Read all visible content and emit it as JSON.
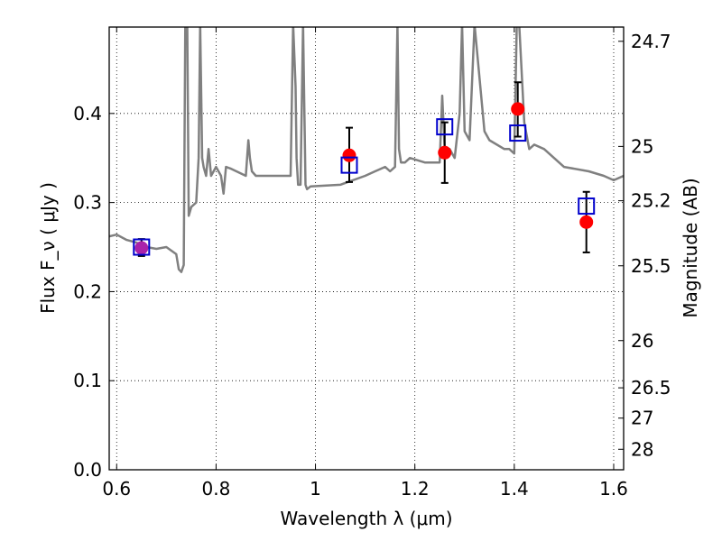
{
  "chart_data": {
    "type": "scatter",
    "xlabel": "Wavelength  λ (μm)",
    "ylabel_left": "Flux  F_ν  ( μJy )",
    "ylabel_right": "Magnitude (AB)",
    "xlim": [
      0.585,
      1.62
    ],
    "ylim": [
      0.0,
      0.497
    ],
    "grid": true,
    "x_ticks": [
      0.6,
      0.8,
      1.0,
      1.2,
      1.4,
      1.6
    ],
    "x_tick_labels": [
      "0.6",
      "0.8",
      "1",
      "1.2",
      "1.4",
      "1.6"
    ],
    "y_ticks": [
      0.0,
      0.1,
      0.2,
      0.3,
      0.4
    ],
    "y_tick_labels": [
      "0.0",
      "0.1",
      "0.2",
      "0.3",
      "0.4"
    ],
    "right_ticks": [
      {
        "label": "24.7",
        "flux": 0.481
      },
      {
        "label": "25",
        "flux": 0.363
      },
      {
        "label": "25.2",
        "flux": 0.302
      },
      {
        "label": "25.5",
        "flux": 0.229
      },
      {
        "label": "26",
        "flux": 0.145
      },
      {
        "label": "26.5",
        "flux": 0.092
      },
      {
        "label": "27",
        "flux": 0.058
      },
      {
        "label": "28",
        "flux": 0.023
      }
    ],
    "spectrum": {
      "color": "#808080",
      "x": [
        0.585,
        0.6,
        0.62,
        0.64,
        0.66,
        0.68,
        0.7,
        0.72,
        0.725,
        0.73,
        0.735,
        0.738,
        0.742,
        0.745,
        0.75,
        0.76,
        0.765,
        0.768,
        0.772,
        0.775,
        0.78,
        0.785,
        0.79,
        0.795,
        0.8,
        0.81,
        0.815,
        0.82,
        0.83,
        0.86,
        0.865,
        0.868,
        0.872,
        0.88,
        0.95,
        0.955,
        0.96,
        0.962,
        0.965,
        0.97,
        0.975,
        0.98,
        0.983,
        0.99,
        1.05,
        1.1,
        1.12,
        1.14,
        1.15,
        1.16,
        1.165,
        1.168,
        1.172,
        1.18,
        1.19,
        1.22,
        1.25,
        1.255,
        1.26,
        1.265,
        1.27,
        1.28,
        1.29,
        1.295,
        1.3,
        1.31,
        1.32,
        1.33,
        1.34,
        1.35,
        1.38,
        1.39,
        1.4,
        1.405,
        1.41,
        1.42,
        1.43,
        1.44,
        1.46,
        1.48,
        1.5,
        1.55,
        1.58,
        1.6,
        1.62
      ],
      "y": [
        0.262,
        0.264,
        0.258,
        0.255,
        0.25,
        0.248,
        0.25,
        0.242,
        0.225,
        0.222,
        0.23,
        0.5,
        0.5,
        0.285,
        0.295,
        0.3,
        0.35,
        0.5,
        0.35,
        0.34,
        0.33,
        0.36,
        0.33,
        0.335,
        0.34,
        0.33,
        0.31,
        0.34,
        0.338,
        0.33,
        0.37,
        0.35,
        0.335,
        0.33,
        0.33,
        0.5,
        0.43,
        0.35,
        0.32,
        0.32,
        0.5,
        0.32,
        0.315,
        0.318,
        0.32,
        0.33,
        0.335,
        0.34,
        0.335,
        0.34,
        0.5,
        0.36,
        0.345,
        0.345,
        0.35,
        0.345,
        0.345,
        0.42,
        0.36,
        0.36,
        0.36,
        0.35,
        0.4,
        0.5,
        0.38,
        0.37,
        0.5,
        0.44,
        0.38,
        0.37,
        0.36,
        0.36,
        0.355,
        0.5,
        0.5,
        0.39,
        0.36,
        0.365,
        0.36,
        0.35,
        0.34,
        0.335,
        0.33,
        0.325,
        0.33
      ]
    },
    "series": [
      {
        "marker": "circle",
        "color": "#ff0000",
        "points": [
          {
            "x": 0.65,
            "y": 0.249,
            "yerr_low": 0.009,
            "yerr_high": 0.01
          },
          {
            "x": 1.068,
            "y": 0.353,
            "yerr_low": 0.03,
            "yerr_high": 0.031
          },
          {
            "x": 1.26,
            "y": 0.356,
            "yerr_low": 0.034,
            "yerr_high": 0.034
          },
          {
            "x": 1.407,
            "y": 0.405,
            "yerr_low": 0.031,
            "yerr_high": 0.03
          },
          {
            "x": 1.545,
            "y": 0.278,
            "yerr_low": 0.034,
            "yerr_high": 0.034
          }
        ]
      },
      {
        "marker": "open-square",
        "color": "#0000cc",
        "points": [
          {
            "x": 0.65,
            "y": 0.25
          },
          {
            "x": 1.068,
            "y": 0.342
          },
          {
            "x": 1.26,
            "y": 0.385
          },
          {
            "x": 1.407,
            "y": 0.378
          },
          {
            "x": 1.545,
            "y": 0.296
          }
        ]
      }
    ],
    "overlap_marker_color": "#aa22aa"
  }
}
